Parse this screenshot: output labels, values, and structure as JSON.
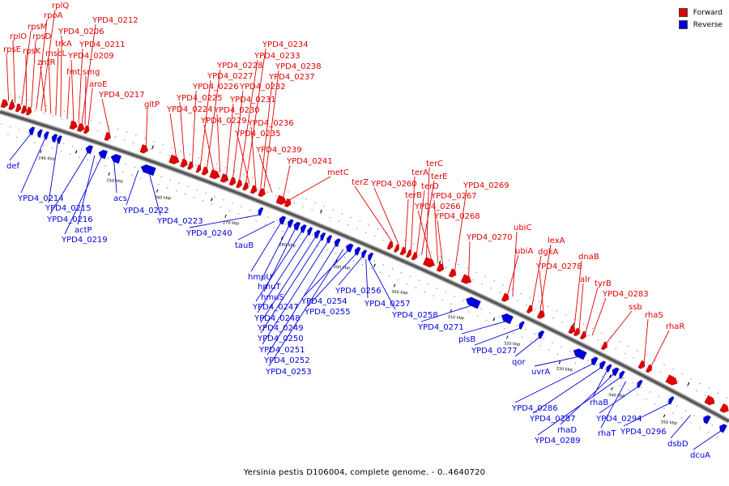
{
  "caption": "Yersinia pestis D106004, complete genome. - 0..4640720",
  "legend": [
    {
      "label": "Forward",
      "color": "#e00000"
    },
    {
      "label": "Reverse",
      "color": "#0000dd"
    }
  ],
  "colors": {
    "forward": "#e00000",
    "reverse": "#0000dd",
    "backbone": "#555555"
  },
  "ticks": [
    "240 kbp",
    "250 kbp",
    "260 kbp",
    "270 kbp",
    "280 kbp",
    "290 kbp",
    "300 kbp",
    "310 kbp",
    "320 kbp",
    "330 kbp",
    "340 kbp",
    "350 kbp"
  ],
  "forward_labels": [
    "rpsE",
    "rplO",
    "rpsM",
    "rpsK",
    "rpsD",
    "rpoA",
    "rplQ",
    "zntR",
    "mscL",
    "trkA",
    "YPD4_0206",
    "fmt",
    "YPD4_0209",
    "YPD4_0211",
    "YPD4_0212",
    "smg",
    "aroE",
    "YPD4_0217",
    "gltP",
    "YPD4_0224",
    "YPD4_0225",
    "YPD4_0226",
    "YPD4_0227",
    "YPD4_0228",
    "YPD4_0229",
    "YPD4_0230",
    "YPD4_0231",
    "YPD4_0232",
    "YPD4_0233",
    "YPD4_0234",
    "YPD4_0235",
    "YPD4_0236",
    "YPD4_0237",
    "YPD4_0238",
    "YPD4_0239",
    "YPD4_0241",
    "metC",
    "terZ",
    "YPD4_0260",
    "terB",
    "terA",
    "terD",
    "terE",
    "terC",
    "YPD4_0266",
    "YPD4_0267",
    "YPD4_0268",
    "YPD4_0269",
    "YPD4_0270",
    "ubiA",
    "ubiC",
    "dgkA",
    "lexA",
    "YPD4_0278",
    "dnaB",
    "alr",
    "tyrB",
    "YPD4_0283",
    "ssb",
    "rhaS",
    "rhaR"
  ],
  "reverse_labels": [
    "def",
    "YPD4_0214",
    "YPD4_0215",
    "YPD4_0216",
    "actP",
    "YPD4_0219",
    "acs",
    "YPD4_0222",
    "YPD4_0223",
    "YPD4_0240",
    "tauB",
    "hmuU",
    "hmuT",
    "hmuS",
    "YPD4_0247",
    "YPD4_0248",
    "YPD4_0249",
    "YPD4_0250",
    "YPD4_0251",
    "YPD4_0252",
    "YPD4_0253",
    "YPD4_0254",
    "YPD4_0255",
    "YPD4_0256",
    "YPD4_0257",
    "YPD4_0258",
    "YPD4_0271",
    "plsB",
    "YPD4_0277",
    "qor",
    "uvrA",
    "YPD4_0286",
    "YPD4_0287",
    "rhaB",
    "rhaD",
    "YPD4_0289",
    "rhaT",
    "YPD4_0294",
    "YPD4_0296",
    "dsbD",
    "dcuA"
  ]
}
